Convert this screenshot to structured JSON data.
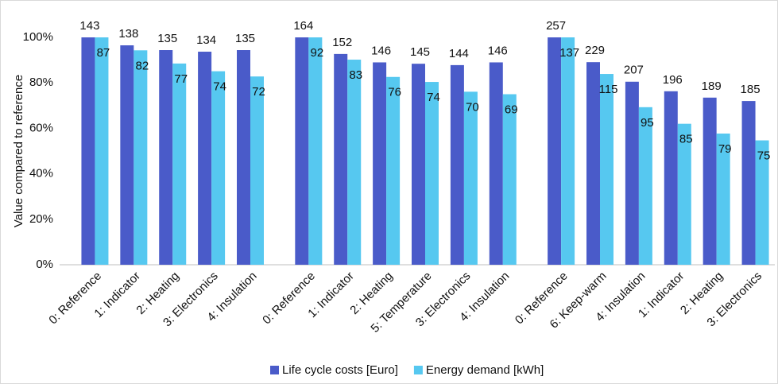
{
  "chart_data": {
    "type": "bar",
    "y_label": "Value compared to reference",
    "categories": [
      "0: Reference",
      "1: Indicator",
      "2: Heating",
      "3: Electronics",
      "4: Insulation",
      null,
      "0: Reference",
      "1: Indicator",
      "2: Heating",
      "5: Temperature",
      "3: Electronics",
      "4: Insulation",
      null,
      "0: Reference",
      "6: Keep-warm",
      "4: Insulation",
      "1: Indicator",
      "2: Heating",
      "3: Electronics"
    ],
    "series": [
      {
        "name": "Life cycle costs [Euro]",
        "color": "#4a5bc9",
        "values": [
          100,
          96.5,
          94.4,
          93.7,
          94.4,
          null,
          100,
          92.7,
          89.0,
          88.4,
          87.8,
          89.0,
          null,
          100,
          89.1,
          80.5,
          76.3,
          73.5,
          72.0
        ],
        "data_labels": [
          143,
          138,
          135,
          134,
          135,
          null,
          164,
          152,
          146,
          145,
          144,
          146,
          null,
          257,
          229,
          207,
          196,
          189,
          185
        ]
      },
      {
        "name": "Energy demand [kWh]",
        "color": "#56c8f0",
        "values": [
          100,
          94.3,
          88.5,
          85.1,
          82.8,
          null,
          100,
          90.2,
          82.6,
          80.4,
          76.1,
          75.0,
          null,
          100,
          83.9,
          69.3,
          62.0,
          57.7,
          54.7
        ],
        "data_labels": [
          87,
          82,
          77,
          74,
          72,
          null,
          92,
          83,
          76,
          74,
          70,
          69,
          null,
          137,
          115,
          95,
          85,
          79,
          75
        ]
      }
    ],
    "ylim": [
      0,
      100
    ],
    "yticks": [
      {
        "value": 0,
        "label": "0%"
      },
      {
        "value": 20,
        "label": "20%"
      },
      {
        "value": 40,
        "label": "40%"
      },
      {
        "value": 60,
        "label": "60%"
      },
      {
        "value": 80,
        "label": "80%"
      },
      {
        "value": 100,
        "label": "100%"
      }
    ],
    "grid": false,
    "legend": "bottom"
  }
}
